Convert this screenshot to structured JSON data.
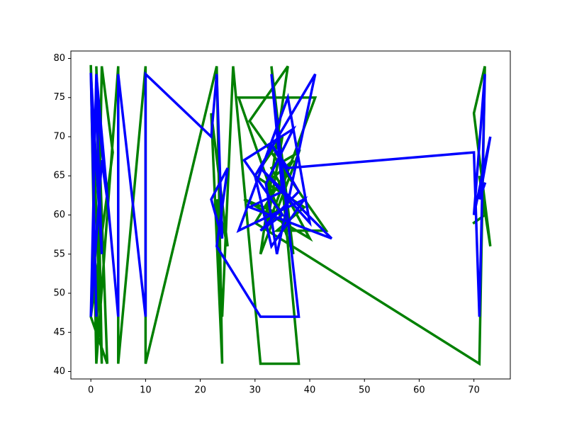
{
  "chart_data": {
    "type": "line",
    "xlim": [
      -3.65,
      76.65
    ],
    "ylim": [
      39.05,
      80.95
    ],
    "xticks": [
      0,
      10,
      20,
      30,
      40,
      50,
      60,
      70
    ],
    "yticks": [
      40,
      45,
      50,
      55,
      60,
      65,
      70,
      75,
      80
    ],
    "series": [
      {
        "color": "#008000",
        "x": [
          0,
          1,
          0,
          2,
          1,
          3,
          0,
          4,
          2,
          1,
          5,
          5,
          10,
          10,
          23,
          24,
          22,
          25,
          23,
          24,
          26,
          31,
          38,
          33,
          37,
          27,
          41,
          32,
          35,
          30,
          39,
          34,
          43,
          29,
          36,
          31,
          38,
          33,
          40,
          28,
          35,
          32,
          37,
          30,
          71,
          72,
          70,
          73,
          71,
          72,
          70
        ],
        "values": [
          79,
          41,
          79,
          41,
          79,
          41,
          47,
          68,
          79,
          41,
          79,
          41,
          79,
          41,
          79,
          41,
          73,
          56,
          62,
          47,
          79,
          41,
          41,
          79,
          55,
          75,
          75,
          58,
          70,
          65,
          61,
          58,
          58,
          72,
          79,
          55,
          68,
          66,
          57,
          62,
          60,
          64,
          67,
          59,
          41,
          79,
          73,
          56,
          65,
          60,
          59
        ]
      },
      {
        "color": "#0000ff",
        "x": [
          0,
          1,
          0,
          2,
          1,
          3,
          2,
          0,
          1,
          5,
          5,
          10,
          10,
          22,
          23,
          24,
          22,
          25,
          23,
          31,
          38,
          33,
          35,
          29,
          44,
          31,
          40,
          36,
          27,
          39,
          33,
          30,
          41,
          34,
          32,
          37,
          28,
          35,
          31,
          38,
          33,
          36,
          70,
          71,
          72,
          70,
          73,
          71,
          72
        ],
        "values": [
          78,
          47,
          78,
          55,
          75,
          62,
          67,
          47,
          78,
          47,
          78,
          47,
          78,
          70,
          78,
          57,
          62,
          66,
          56,
          47,
          47,
          78,
          63,
          61,
          57,
          66,
          59,
          75,
          58,
          62,
          56,
          65,
          78,
          55,
          64,
          71,
          67,
          60,
          58,
          63,
          69,
          66,
          68,
          47,
          78,
          60,
          70,
          62,
          64
        ]
      }
    ]
  }
}
